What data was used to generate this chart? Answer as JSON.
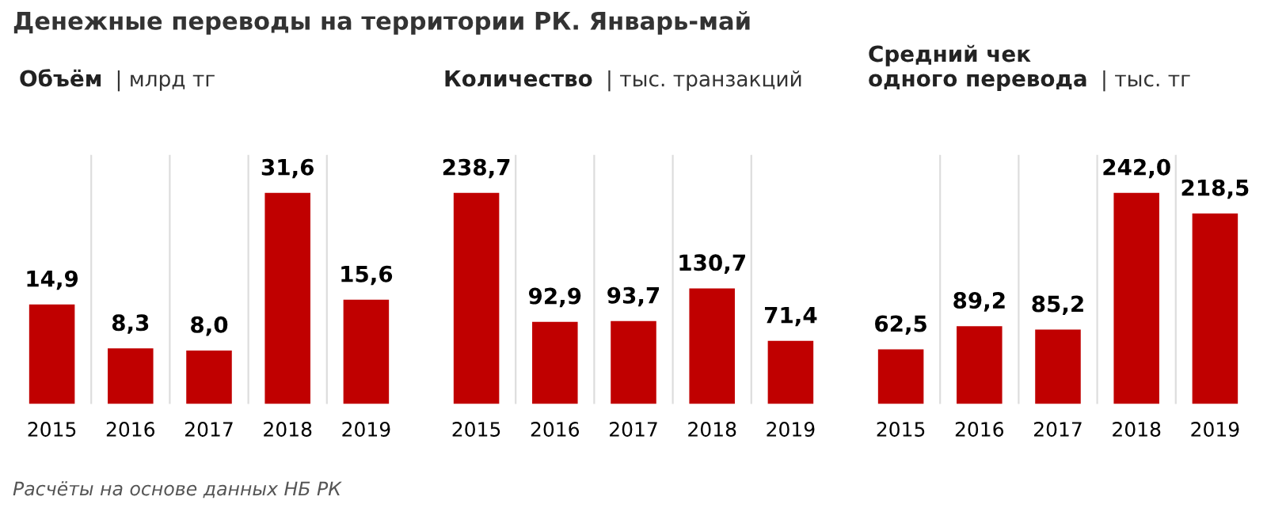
{
  "chart_data": [
    {
      "type": "bar",
      "title": "Объём",
      "subtitle": "| млрд тг",
      "categories": [
        "2015",
        "2016",
        "2017",
        "2018",
        "2019"
      ],
      "values": [
        14.9,
        8.3,
        8.0,
        31.6,
        15.6
      ],
      "color": "#c00000",
      "data_labels": true,
      "value_labels": [
        "14,9",
        "8,3",
        "8,0",
        "31,6",
        "15,6"
      ],
      "annotations": [
        "Денежные переводы на территории РК. Январь-май"
      ]
    },
    {
      "type": "bar",
      "title": "Количество",
      "subtitle": "| тыс. транзакций",
      "categories": [
        "2015",
        "2016",
        "2017",
        "2018",
        "2019"
      ],
      "values": [
        238.7,
        92.9,
        93.7,
        130.7,
        71.4
      ],
      "color": "#c00000",
      "data_labels": true,
      "value_labels": [
        "238,7",
        "92,9",
        "93,7",
        "130,7",
        "71,4"
      ]
    },
    {
      "type": "bar",
      "title": "Средний чек\nодного перевода",
      "subtitle": "| тыс. тг",
      "categories": [
        "2015",
        "2016",
        "2017",
        "2018",
        "2019"
      ],
      "values": [
        62.5,
        89.2,
        85.2,
        242.0,
        218.5
      ],
      "color": "#c00000",
      "data_labels": true,
      "value_labels": [
        "62,5",
        "89,2",
        "85,2",
        "242,0",
        "218,5"
      ],
      "annotations": [
        "Расчёты на основе данных НБ РК"
      ]
    }
  ]
}
